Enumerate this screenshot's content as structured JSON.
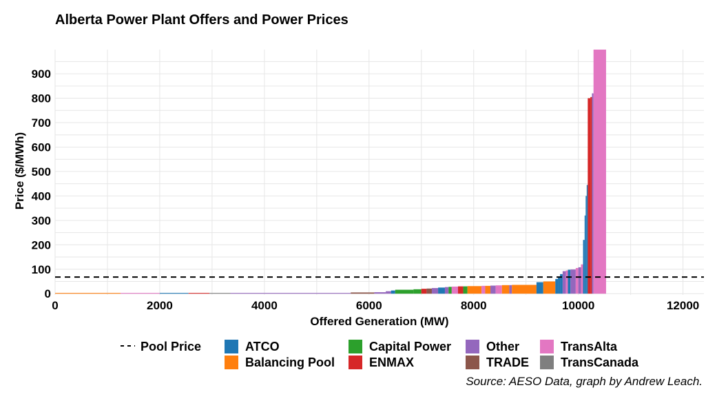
{
  "chart_data": {
    "type": "bar",
    "subtype": "merit-order step chart",
    "title": "Alberta Power Plant Offers and Power Prices",
    "xlabel": "Offered Generation (MW)",
    "ylabel": "Price ($/MWh)",
    "caption": "Source: AESO Data, graph by Andrew Leach.",
    "xlim": [
      0,
      12400
    ],
    "ylim": [
      -5,
      999
    ],
    "xticks": [
      0,
      2000,
      4000,
      6000,
      8000,
      10000,
      12000
    ],
    "yticks": [
      0,
      100,
      200,
      300,
      400,
      500,
      600,
      700,
      800,
      900
    ],
    "grid": true,
    "legend_position": "bottom",
    "pool_price": {
      "name": "Pool Price",
      "value": 68,
      "style": "dashed",
      "color": "#000000"
    },
    "series": [
      {
        "name": "ATCO",
        "color": "#1f77b4"
      },
      {
        "name": "Balancing Pool",
        "color": "#ff7f0e"
      },
      {
        "name": "Capital Power",
        "color": "#2ca02c"
      },
      {
        "name": "ENMAX",
        "color": "#d62728"
      },
      {
        "name": "Other",
        "color": "#9467bd"
      },
      {
        "name": "TRADE",
        "color": "#8c564b"
      },
      {
        "name": "TransAlta",
        "color": "#e377c2"
      },
      {
        "name": "TransCanada",
        "color": "#7f7f7f"
      }
    ],
    "blocks": [
      {
        "x0": 0,
        "x1": 1250,
        "price": 3,
        "owner": "Balancing Pool"
      },
      {
        "x0": 1250,
        "x1": 2000,
        "price": 3,
        "owner": "TransAlta"
      },
      {
        "x0": 2000,
        "x1": 2550,
        "price": 3,
        "owner": "ATCO"
      },
      {
        "x0": 2550,
        "x1": 2950,
        "price": 3,
        "owner": "ENMAX"
      },
      {
        "x0": 2950,
        "x1": 3350,
        "price": 3,
        "owner": "TransCanada"
      },
      {
        "x0": 3350,
        "x1": 5650,
        "price": 3,
        "owner": "Other"
      },
      {
        "x0": 5650,
        "x1": 6100,
        "price": 5,
        "owner": "TRADE"
      },
      {
        "x0": 6100,
        "x1": 6320,
        "price": 6,
        "owner": "Other"
      },
      {
        "x0": 6320,
        "x1": 6420,
        "price": 10,
        "owner": "Other"
      },
      {
        "x0": 6420,
        "x1": 6500,
        "price": 13,
        "owner": "ATCO"
      },
      {
        "x0": 6500,
        "x1": 6850,
        "price": 16,
        "owner": "Capital Power"
      },
      {
        "x0": 6850,
        "x1": 7000,
        "price": 18,
        "owner": "Capital Power"
      },
      {
        "x0": 7000,
        "x1": 7100,
        "price": 20,
        "owner": "ENMAX"
      },
      {
        "x0": 7100,
        "x1": 7200,
        "price": 21,
        "owner": "TRADE"
      },
      {
        "x0": 7200,
        "x1": 7320,
        "price": 23,
        "owner": "Other"
      },
      {
        "x0": 7320,
        "x1": 7450,
        "price": 25,
        "owner": "ATCO"
      },
      {
        "x0": 7450,
        "x1": 7520,
        "price": 27,
        "owner": "Other"
      },
      {
        "x0": 7520,
        "x1": 7580,
        "price": 28,
        "owner": "Capital Power"
      },
      {
        "x0": 7580,
        "x1": 7700,
        "price": 29,
        "owner": "TransAlta"
      },
      {
        "x0": 7700,
        "x1": 7800,
        "price": 30,
        "owner": "ENMAX"
      },
      {
        "x0": 7800,
        "x1": 7880,
        "price": 30,
        "owner": "Capital Power"
      },
      {
        "x0": 7880,
        "x1": 8150,
        "price": 31,
        "owner": "Balancing Pool"
      },
      {
        "x0": 8150,
        "x1": 8220,
        "price": 32,
        "owner": "TransAlta"
      },
      {
        "x0": 8220,
        "x1": 8320,
        "price": 32,
        "owner": "Balancing Pool"
      },
      {
        "x0": 8320,
        "x1": 8420,
        "price": 33,
        "owner": "Other"
      },
      {
        "x0": 8420,
        "x1": 8540,
        "price": 34,
        "owner": "TransAlta"
      },
      {
        "x0": 8540,
        "x1": 8680,
        "price": 35,
        "owner": "Balancing Pool"
      },
      {
        "x0": 8680,
        "x1": 8730,
        "price": 35,
        "owner": "Other"
      },
      {
        "x0": 8730,
        "x1": 9200,
        "price": 36,
        "owner": "Balancing Pool"
      },
      {
        "x0": 9200,
        "x1": 9330,
        "price": 47,
        "owner": "ATCO"
      },
      {
        "x0": 9330,
        "x1": 9560,
        "price": 50,
        "owner": "Balancing Pool"
      },
      {
        "x0": 9560,
        "x1": 9610,
        "price": 60,
        "owner": "ATCO"
      },
      {
        "x0": 9610,
        "x1": 9650,
        "price": 70,
        "owner": "ATCO"
      },
      {
        "x0": 9650,
        "x1": 9700,
        "price": 80,
        "owner": "ATCO"
      },
      {
        "x0": 9700,
        "x1": 9760,
        "price": 92,
        "owner": "Other"
      },
      {
        "x0": 9760,
        "x1": 9800,
        "price": 95,
        "owner": "TransAlta"
      },
      {
        "x0": 9800,
        "x1": 9850,
        "price": 98,
        "owner": "ATCO"
      },
      {
        "x0": 9850,
        "x1": 9950,
        "price": 99,
        "owner": "Other"
      },
      {
        "x0": 9950,
        "x1": 10000,
        "price": 105,
        "owner": "TransAlta"
      },
      {
        "x0": 10000,
        "x1": 10050,
        "price": 108,
        "owner": "Other"
      },
      {
        "x0": 10050,
        "x1": 10090,
        "price": 120,
        "owner": "TransAlta"
      },
      {
        "x0": 10090,
        "x1": 10120,
        "price": 220,
        "owner": "ATCO"
      },
      {
        "x0": 10120,
        "x1": 10140,
        "price": 320,
        "owner": "ATCO"
      },
      {
        "x0": 10140,
        "x1": 10160,
        "price": 400,
        "owner": "ATCO"
      },
      {
        "x0": 10160,
        "x1": 10180,
        "price": 445,
        "owner": "ATCO"
      },
      {
        "x0": 10180,
        "x1": 10230,
        "price": 800,
        "owner": "ENMAX"
      },
      {
        "x0": 10230,
        "x1": 10260,
        "price": 805,
        "owner": "ENMAX"
      },
      {
        "x0": 10260,
        "x1": 10290,
        "price": 820,
        "owner": "Other"
      },
      {
        "x0": 10290,
        "x1": 10530,
        "price": 999,
        "owner": "TransAlta"
      }
    ]
  }
}
